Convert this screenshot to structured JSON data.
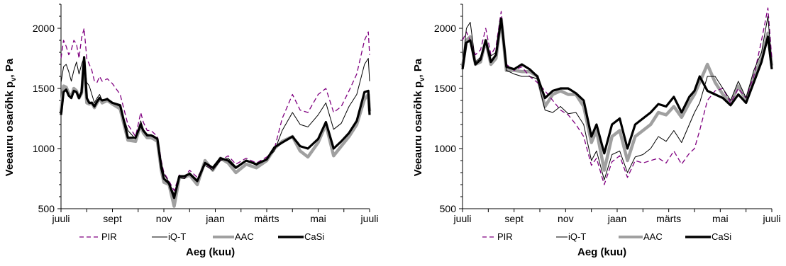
{
  "chart_data": [
    {
      "type": "line",
      "ylabel": "Veeauru osarõhk p",
      "ylabel_sub": "v",
      "ylabel_tail": ", Pa",
      "xlabel": "Aeg (kuu)",
      "x_ticks": [
        "juuli",
        "sept",
        "nov",
        "jaan",
        "märts",
        "mai",
        "juuli"
      ],
      "y_ticks": [
        500,
        1000,
        1500,
        2000
      ],
      "ylim": [
        500,
        2200
      ],
      "legend_position": "bottom",
      "grid": false,
      "series": [
        {
          "name": "PIR",
          "color": "#800080",
          "style": "dashed",
          "x": [
            0,
            0.1,
            0.2,
            0.3,
            0.4,
            0.5,
            0.6,
            0.7,
            0.8,
            0.9,
            1.0,
            1.1,
            1.2,
            1.3,
            1.4,
            1.5,
            1.6,
            1.8,
            2.0,
            2.3,
            2.6,
            2.9,
            3.1,
            3.2,
            3.35,
            3.5,
            3.6,
            3.75,
            3.9,
            4.0,
            4.2,
            4.4,
            4.6,
            4.8,
            5.0,
            5.3,
            5.6,
            5.9,
            6.2,
            6.5,
            6.8,
            7.2,
            7.6,
            8.0,
            8.3,
            8.6,
            9.0,
            9.3,
            9.6,
            10.0,
            10.3,
            10.6,
            10.9,
            11.2,
            11.5,
            11.8,
            11.95,
            12.0
          ],
          "y": [
            1750,
            1900,
            1850,
            1780,
            1820,
            1900,
            1870,
            1750,
            1920,
            2000,
            1750,
            1700,
            1650,
            1560,
            1550,
            1600,
            1560,
            1580,
            1540,
            1450,
            1200,
            1100,
            1300,
            1220,
            1150,
            1150,
            1130,
            1100,
            900,
            800,
            730,
            650,
            780,
            760,
            820,
            760,
            870,
            830,
            900,
            940,
            870,
            920,
            880,
            930,
            1000,
            1250,
            1450,
            1320,
            1300,
            1450,
            1500,
            1300,
            1350,
            1480,
            1620,
            1900,
            1970,
            1780
          ]
        },
        {
          "name": "iQ-T",
          "color": "#000000",
          "style": "thin",
          "x": [
            0,
            0.1,
            0.2,
            0.3,
            0.4,
            0.5,
            0.6,
            0.7,
            0.8,
            0.9,
            1.0,
            1.1,
            1.2,
            1.3,
            1.4,
            1.5,
            1.6,
            1.8,
            2.0,
            2.3,
            2.6,
            2.9,
            3.1,
            3.2,
            3.35,
            3.5,
            3.6,
            3.75,
            3.9,
            4.0,
            4.2,
            4.4,
            4.6,
            4.8,
            5.0,
            5.3,
            5.6,
            5.9,
            6.2,
            6.5,
            6.8,
            7.2,
            7.6,
            8.0,
            8.3,
            8.6,
            9.0,
            9.3,
            9.6,
            10.0,
            10.3,
            10.6,
            10.9,
            11.2,
            11.5,
            11.8,
            11.95,
            12.0
          ],
          "y": [
            1550,
            1680,
            1700,
            1640,
            1560,
            1650,
            1720,
            1620,
            1700,
            1760,
            1550,
            1520,
            1450,
            1380,
            1420,
            1450,
            1400,
            1420,
            1380,
            1350,
            1150,
            1080,
            1230,
            1160,
            1120,
            1110,
            1100,
            1090,
            890,
            790,
            720,
            620,
            760,
            750,
            800,
            740,
            860,
            820,
            900,
            920,
            850,
            900,
            860,
            920,
            980,
            1150,
            1300,
            1200,
            1180,
            1280,
            1380,
            1160,
            1210,
            1350,
            1450,
            1700,
            1750,
            1560
          ]
        },
        {
          "name": "AAC",
          "color": "#a0a0a0",
          "style": "thick",
          "x": [
            0,
            0.1,
            0.2,
            0.3,
            0.4,
            0.5,
            0.6,
            0.7,
            0.8,
            0.9,
            1.0,
            1.1,
            1.2,
            1.3,
            1.4,
            1.5,
            1.6,
            1.8,
            2.0,
            2.3,
            2.6,
            2.9,
            3.1,
            3.2,
            3.35,
            3.5,
            3.6,
            3.75,
            3.9,
            4.0,
            4.2,
            4.4,
            4.6,
            4.8,
            5.0,
            5.3,
            5.6,
            5.9,
            6.2,
            6.5,
            6.8,
            7.2,
            7.6,
            8.0,
            8.3,
            8.6,
            9.0,
            9.3,
            9.6,
            10.0,
            10.3,
            10.6,
            10.9,
            11.2,
            11.5,
            11.8,
            11.95,
            12.0
          ],
          "y": [
            1300,
            1520,
            1510,
            1460,
            1430,
            1500,
            1480,
            1420,
            1460,
            1720,
            1380,
            1370,
            1380,
            1340,
            1380,
            1420,
            1380,
            1400,
            1370,
            1330,
            1070,
            1060,
            1200,
            1130,
            1090,
            1090,
            1080,
            1060,
            820,
            720,
            700,
            520,
            760,
            760,
            780,
            700,
            900,
            820,
            920,
            880,
            800,
            870,
            840,
            900,
            1000,
            1060,
            1100,
            980,
            930,
            1050,
            1200,
            940,
            1020,
            1100,
            1200,
            1410,
            1450,
            1310
          ]
        },
        {
          "name": "CaSi",
          "color": "#000000",
          "style": "thick",
          "x": [
            0,
            0.1,
            0.2,
            0.3,
            0.4,
            0.5,
            0.6,
            0.7,
            0.8,
            0.9,
            1.0,
            1.1,
            1.2,
            1.3,
            1.4,
            1.5,
            1.6,
            1.8,
            2.0,
            2.3,
            2.6,
            2.9,
            3.1,
            3.2,
            3.35,
            3.5,
            3.6,
            3.75,
            3.9,
            4.0,
            4.2,
            4.4,
            4.6,
            4.8,
            5.0,
            5.3,
            5.6,
            5.9,
            6.2,
            6.5,
            6.8,
            7.2,
            7.6,
            8.0,
            8.3,
            8.6,
            9.0,
            9.3,
            9.6,
            10.0,
            10.3,
            10.6,
            10.9,
            11.2,
            11.5,
            11.8,
            11.95,
            12.0
          ],
          "y": [
            1280,
            1470,
            1490,
            1440,
            1420,
            1480,
            1470,
            1420,
            1470,
            1760,
            1420,
            1380,
            1380,
            1350,
            1390,
            1420,
            1400,
            1410,
            1380,
            1360,
            1090,
            1090,
            1200,
            1150,
            1110,
            1110,
            1100,
            1080,
            840,
            750,
            710,
            590,
            770,
            770,
            790,
            730,
            880,
            840,
            920,
            900,
            840,
            900,
            870,
            910,
            1010,
            1050,
            1100,
            1020,
            1000,
            1080,
            1220,
            1000,
            1060,
            1130,
            1230,
            1470,
            1480,
            1280
          ]
        }
      ]
    },
    {
      "type": "line",
      "ylabel": "Veeauru osarõhk p",
      "ylabel_sub": "v",
      "ylabel_tail": ", Pa",
      "xlabel": "Aeg (kuu)",
      "x_ticks": [
        "juuli",
        "sept",
        "nov",
        "jaan",
        "märts",
        "mai",
        "juuli"
      ],
      "y_ticks": [
        500,
        1000,
        1500,
        2000
      ],
      "ylim": [
        500,
        2200
      ],
      "legend_position": "bottom",
      "grid": false,
      "series": [
        {
          "name": "PIR",
          "color": "#800080",
          "style": "dashed",
          "x": [
            0,
            0.15,
            0.3,
            0.5,
            0.7,
            0.9,
            1.1,
            1.3,
            1.5,
            1.7,
            2.0,
            2.3,
            2.6,
            2.9,
            3.2,
            3.5,
            3.8,
            4.1,
            4.4,
            4.7,
            5.0,
            5.2,
            5.5,
            5.8,
            6.1,
            6.4,
            6.7,
            7.0,
            7.3,
            7.6,
            7.9,
            8.2,
            8.5,
            8.8,
            9.0,
            9.2,
            9.5,
            9.8,
            10.1,
            10.4,
            10.7,
            11.0,
            11.3,
            11.6,
            11.85,
            12.0
          ],
          "y": [
            1900,
            1970,
            1900,
            1780,
            1820,
            2000,
            1780,
            1850,
            2140,
            1700,
            1650,
            1680,
            1600,
            1550,
            1480,
            1400,
            1320,
            1280,
            1200,
            1100,
            860,
            920,
            700,
            890,
            940,
            760,
            900,
            880,
            900,
            920,
            880,
            980,
            870,
            960,
            1000,
            1150,
            1400,
            1480,
            1500,
            1380,
            1500,
            1420,
            1600,
            1900,
            2170,
            1750
          ]
        },
        {
          "name": "iQ-T",
          "color": "#000000",
          "style": "thin",
          "x": [
            0,
            0.15,
            0.3,
            0.5,
            0.7,
            0.9,
            1.1,
            1.3,
            1.5,
            1.7,
            2.0,
            2.3,
            2.6,
            2.9,
            3.2,
            3.5,
            3.8,
            4.1,
            4.4,
            4.7,
            5.0,
            5.2,
            5.5,
            5.8,
            6.1,
            6.4,
            6.7,
            7.0,
            7.3,
            7.6,
            7.9,
            8.2,
            8.5,
            8.8,
            9.0,
            9.2,
            9.5,
            9.8,
            10.1,
            10.4,
            10.7,
            11.0,
            11.3,
            11.6,
            11.85,
            12.0
          ],
          "y": [
            1700,
            2000,
            2050,
            1720,
            1760,
            1900,
            1770,
            1800,
            2060,
            1650,
            1620,
            1600,
            1600,
            1580,
            1320,
            1300,
            1350,
            1290,
            1300,
            1200,
            900,
            980,
            740,
            950,
            980,
            800,
            930,
            950,
            1000,
            1100,
            1060,
            1150,
            1050,
            1200,
            1300,
            1380,
            1600,
            1600,
            1500,
            1400,
            1560,
            1420,
            1650,
            1800,
            2100,
            1700
          ]
        },
        {
          "name": "AAC",
          "color": "#a0a0a0",
          "style": "thick",
          "x": [
            0,
            0.15,
            0.3,
            0.5,
            0.7,
            0.9,
            1.1,
            1.3,
            1.5,
            1.7,
            2.0,
            2.3,
            2.6,
            2.9,
            3.2,
            3.5,
            3.8,
            4.1,
            4.4,
            4.7,
            5.0,
            5.2,
            5.5,
            5.8,
            6.1,
            6.4,
            6.7,
            7.0,
            7.3,
            7.6,
            7.9,
            8.2,
            8.5,
            8.8,
            9.0,
            9.2,
            9.5,
            9.8,
            10.1,
            10.4,
            10.7,
            11.0,
            11.3,
            11.6,
            11.85,
            12.0
          ],
          "y": [
            1680,
            1900,
            1930,
            1700,
            1720,
            1900,
            1700,
            1750,
            2080,
            1650,
            1650,
            1640,
            1640,
            1600,
            1350,
            1450,
            1480,
            1450,
            1450,
            1350,
            1050,
            1150,
            820,
            1100,
            1150,
            900,
            1100,
            1150,
            1200,
            1300,
            1280,
            1350,
            1260,
            1380,
            1450,
            1550,
            1700,
            1550,
            1450,
            1380,
            1520,
            1400,
            1600,
            1750,
            1960,
            1690
          ]
        },
        {
          "name": "CaSi",
          "color": "#000000",
          "style": "thick",
          "x": [
            0,
            0.15,
            0.3,
            0.5,
            0.7,
            0.9,
            1.1,
            1.3,
            1.5,
            1.7,
            2.0,
            2.3,
            2.6,
            2.9,
            3.2,
            3.5,
            3.8,
            4.1,
            4.4,
            4.7,
            5.0,
            5.2,
            5.5,
            5.8,
            6.1,
            6.4,
            6.7,
            7.0,
            7.3,
            7.6,
            7.9,
            8.2,
            8.5,
            8.8,
            9.0,
            9.2,
            9.5,
            9.8,
            10.1,
            10.4,
            10.7,
            11.0,
            11.3,
            11.6,
            11.85,
            12.0
          ],
          "y": [
            1660,
            1880,
            1900,
            1700,
            1740,
            1900,
            1720,
            1780,
            2080,
            1680,
            1660,
            1700,
            1660,
            1600,
            1420,
            1480,
            1500,
            1500,
            1460,
            1400,
            1100,
            1200,
            960,
            1200,
            1250,
            1000,
            1200,
            1250,
            1300,
            1370,
            1350,
            1430,
            1300,
            1430,
            1480,
            1600,
            1480,
            1450,
            1420,
            1360,
            1450,
            1380,
            1550,
            1720,
            1930,
            1660
          ]
        }
      ]
    }
  ]
}
